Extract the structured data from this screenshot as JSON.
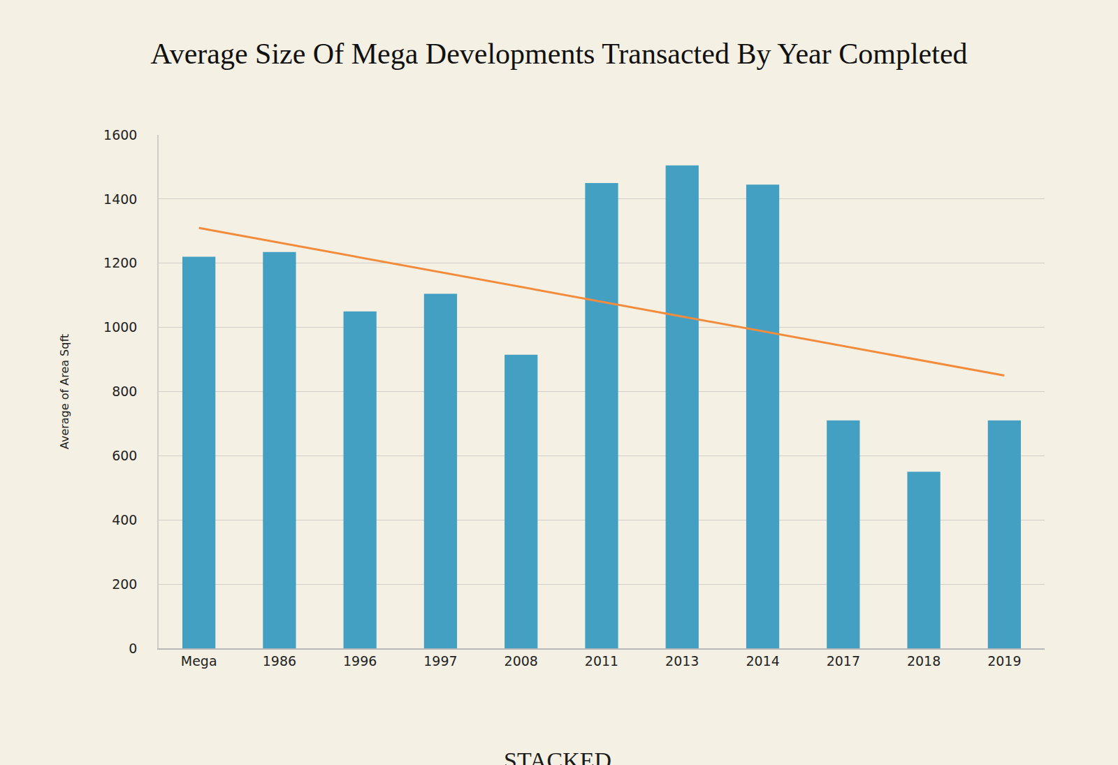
{
  "chart_data": {
    "type": "bar",
    "title": "Average Size Of Mega Developments Transacted By Year Completed",
    "y_label": "Average of Area Sqft",
    "categories": [
      "Mega",
      "1986",
      "1996",
      "1997",
      "2008",
      "2011",
      "2013",
      "2014",
      "2017",
      "2018",
      "2019"
    ],
    "values": [
      1220,
      1235,
      1050,
      1105,
      915,
      1450,
      1505,
      1445,
      710,
      550,
      710
    ],
    "color": "#43a0c2",
    "trend": {
      "x": [
        "Mega",
        "2019"
      ],
      "values": [
        1310,
        850
      ],
      "color": "#f28c3c"
    },
    "ylim": [
      0,
      1600
    ],
    "yticks": [
      0,
      200,
      400,
      600,
      800,
      1000,
      1200,
      1400,
      1600
    ],
    "grid": true,
    "annotations": [
      {
        "text": "STACKED"
      }
    ]
  }
}
